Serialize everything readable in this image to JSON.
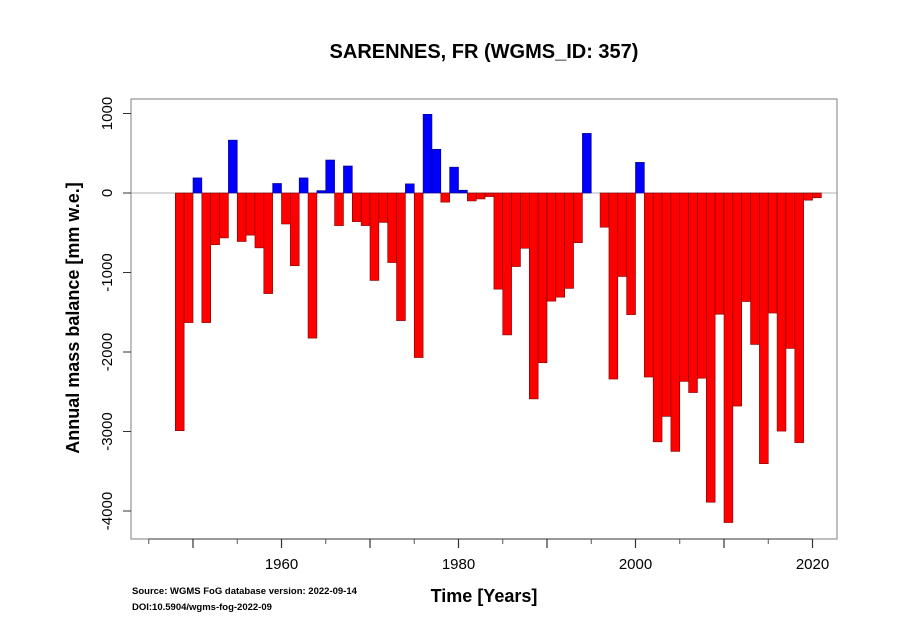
{
  "chart_data": {
    "type": "bar",
    "title": "SARENNES, FR (WGMS_ID: 357)",
    "xlabel": "Time [Years]",
    "ylabel": "Annual mass balance [mm w.e.]",
    "xlim": [
      1943,
      2022
    ],
    "ylim": [
      -4200,
      1150
    ],
    "x_ticks_major": [
      1950,
      1960,
      1970,
      1980,
      1990,
      2000,
      2010,
      2020
    ],
    "x_ticks_minor": [
      1945,
      1955,
      1965,
      1975,
      1985,
      1995,
      2005,
      2015
    ],
    "x_tick_labels": [
      "1960",
      "1980",
      "2000",
      "2020"
    ],
    "x_tick_label_values": [
      1960,
      1980,
      2000,
      2020
    ],
    "y_ticks": [
      1000,
      0,
      -1000,
      -2000,
      -3000,
      -4000
    ],
    "y_tick_labels": [
      "1000",
      "0",
      "-1000",
      "-2000",
      "-3000",
      "-4000"
    ],
    "grid": false,
    "positive_color": "#0000ff",
    "negative_color": "#ff0000",
    "zero_line_color": "#b0b0b0",
    "years": [
      1948,
      1949,
      1950,
      1951,
      1952,
      1953,
      1954,
      1955,
      1956,
      1957,
      1958,
      1959,
      1960,
      1961,
      1962,
      1963,
      1964,
      1965,
      1966,
      1967,
      1968,
      1969,
      1970,
      1971,
      1972,
      1973,
      1974,
      1975,
      1976,
      1977,
      1978,
      1979,
      1980,
      1981,
      1982,
      1983,
      1984,
      1985,
      1986,
      1987,
      1988,
      1989,
      1990,
      1991,
      1992,
      1993,
      1994,
      1995,
      1996,
      1997,
      1998,
      1999,
      2000,
      2001,
      2002,
      2003,
      2004,
      2005,
      2006,
      2007,
      2008,
      2009,
      2010,
      2011,
      2012,
      2013,
      2014,
      2015,
      2016,
      2017,
      2018,
      2019,
      2020
    ],
    "values": [
      -2990,
      -1630,
      190,
      -1630,
      -650,
      -565,
      665,
      -610,
      -530,
      -690,
      -1265,
      120,
      -390,
      -915,
      190,
      -1825,
      30,
      415,
      -410,
      340,
      -360,
      -410,
      -1100,
      -370,
      -875,
      -1605,
      115,
      -2070,
      990,
      550,
      -115,
      325,
      35,
      -100,
      -75,
      -45,
      -1210,
      -1785,
      -925,
      -695,
      -2590,
      -2135,
      -1360,
      -1310,
      -1200,
      -625,
      750,
      null,
      -430,
      -2340,
      -1050,
      -1530,
      385,
      -2315,
      -3130,
      -2810,
      -3250,
      -2370,
      -2510,
      -2330,
      -3890,
      -1525,
      -4145,
      -2680,
      -1365,
      -1905,
      -3405,
      -1510,
      -2995,
      -1955,
      -3140,
      -90,
      -60
    ]
  },
  "notes": {
    "source": "Source: WGMS FoG database version: 2022-09-14",
    "doi": "DOI:10.5904/wgms-fog-2022-09"
  }
}
